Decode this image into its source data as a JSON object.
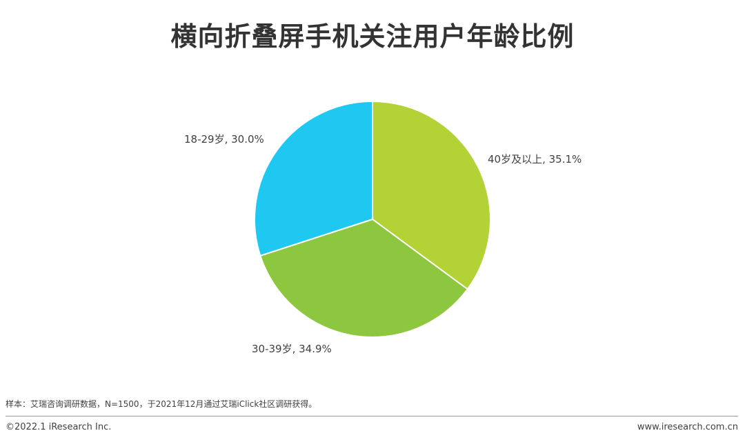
{
  "title": "横向折叠屏手机关注用户年龄比例",
  "chart_data": {
    "type": "pie",
    "start_angle_deg": 0,
    "direction": "clockwise",
    "slices": [
      {
        "name": "40岁及以上",
        "value": 35.1,
        "label": "40岁及以上, 35.1%",
        "color": "#b2d235"
      },
      {
        "name": "30-39岁",
        "value": 34.9,
        "label": "30-39岁, 34.9%",
        "color": "#8dc63f"
      },
      {
        "name": "18-29岁",
        "value": 30.0,
        "label": "18-29岁, 30.0%",
        "color": "#1ec8f0"
      }
    ]
  },
  "note": "样本：艾瑞咨询调研数据，N=1500，于2021年12月通过艾瑞iClick社区调研获得。",
  "footer": {
    "copyright": "©2022.1 iResearch Inc.",
    "website": "www.iresearch.com.cn"
  }
}
